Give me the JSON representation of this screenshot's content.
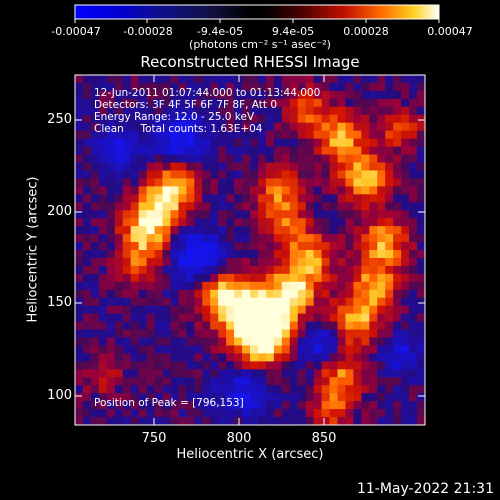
{
  "colorbar": {
    "ticks": [
      "-0.00047",
      "-0.00028",
      "-9.4e-05",
      "9.4e-05",
      "0.00028",
      "0.00047"
    ],
    "unit_label": "(photons cm⁻² s⁻¹ asec⁻²)"
  },
  "plot": {
    "title": "Reconstructed RHESSI Image",
    "xlabel": "Heliocentric X (arcsec)",
    "ylabel": "Heliocentric Y (arcsec)",
    "xticks": [
      "750",
      "800",
      "850"
    ],
    "yticks": [
      "100",
      "150",
      "200",
      "250"
    ],
    "xrange": [
      708,
      895
    ],
    "yrange": [
      85,
      270
    ]
  },
  "info": {
    "time_range": "12-Jun-2011 01:07:44.000 to 01:13:44.000",
    "detectors": "Detectors: 3F 4F 5F 6F 7F 8F, Att 0",
    "energy_range": "Energy Range: 12.0 - 25.0 keV",
    "clean_counts": "Clean     Total counts: 1.63E+04",
    "peak": "Position of Peak = [796,153]"
  },
  "footer": {
    "timestamp": "11-May-2022 21:31"
  },
  "colors": {
    "background": "#000000",
    "colormap_low": "#0000ff",
    "colormap_mid": "#000000",
    "colormap_high": "#ffffff"
  }
}
